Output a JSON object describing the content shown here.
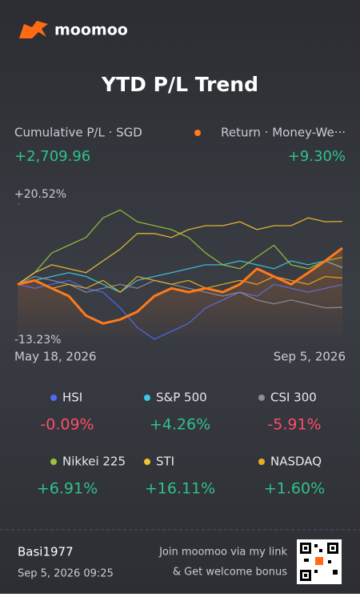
{
  "brand": "moomoo",
  "summary": {
    "left_label": "Cumulative P/L · SGD",
    "left_value": "+2,709.96",
    "right_label": "Return · Money-We···",
    "right_value": "+9.30%"
  },
  "chart_data": {
    "type": "line",
    "title": "YTD P/L Trend",
    "categories": [
      "May 18, 2026",
      null,
      null,
      null,
      null,
      null,
      null,
      null,
      null,
      null,
      null,
      null,
      null,
      null,
      null,
      null,
      null,
      null,
      null,
      "Sep 5, 2026"
    ],
    "ylim": [
      -13.23,
      20.52
    ],
    "yticks": [
      {
        "value": 20.52,
        "label": "+20.52%"
      },
      {
        "value": -13.23,
        "label": "-13.23%"
      }
    ],
    "series": [
      {
        "name": "HSI",
        "color": "#4a6cf7",
        "values": [
          0,
          -1,
          0,
          1,
          -1,
          -2,
          -6,
          -11,
          -14,
          -12,
          -10,
          -6,
          -4,
          -2,
          -3,
          0,
          -1,
          -2,
          -1,
          -0.09
        ],
        "value_label": "-0.09%"
      },
      {
        "name": "S&P 500",
        "color": "#3fc6e8",
        "values": [
          0,
          1,
          2,
          3,
          2,
          0,
          -2,
          1,
          2,
          3,
          4,
          5,
          5,
          6,
          5,
          4,
          6,
          5,
          6,
          4.26
        ],
        "value_label": "+4.26%"
      },
      {
        "name": "CSI 300",
        "color": "#8a8e99",
        "values": [
          0,
          2,
          1,
          0,
          -2,
          -1,
          0,
          -1,
          1,
          0,
          -1,
          -2,
          -3,
          -2,
          -4,
          -5,
          -4,
          -5,
          -6,
          -5.91
        ],
        "value_label": "-5.91%"
      },
      {
        "name": "Nikkei 225",
        "color": "#9bc53d",
        "values": [
          0,
          3,
          8,
          10,
          12,
          17,
          19,
          16,
          15,
          14,
          12,
          8,
          5,
          4,
          7,
          10,
          5,
          4,
          6,
          6.91
        ],
        "value_label": "+6.91%"
      },
      {
        "name": "STI",
        "color": "#f2c230",
        "values": [
          0,
          3,
          5,
          4,
          3,
          6,
          9,
          13,
          13,
          12,
          14,
          15,
          15,
          16,
          14,
          15,
          15,
          17,
          16,
          16.11
        ],
        "value_label": "+16.11%"
      },
      {
        "name": "NASDAQ",
        "color": "#e8b020",
        "values": [
          0,
          1,
          -1,
          0,
          -1,
          1,
          -2,
          2,
          1,
          0,
          1,
          -1,
          0,
          1,
          0,
          2,
          1,
          0,
          2,
          1.6
        ],
        "value_label": "+1.60%"
      },
      {
        "name": "Return",
        "color": "#ff7a1a",
        "values": [
          0,
          1,
          -1,
          -3,
          -8,
          -10,
          -9,
          -7,
          -3,
          -1,
          -2,
          -1,
          -2,
          0,
          4,
          2,
          0,
          3,
          6,
          9.3
        ]
      }
    ]
  },
  "footer": {
    "user": "Basi1977",
    "timestamp": "Sep 5, 2026 09:25",
    "promo_line1": "Join moomoo via my link",
    "promo_line2": "& Get welcome bonus"
  }
}
